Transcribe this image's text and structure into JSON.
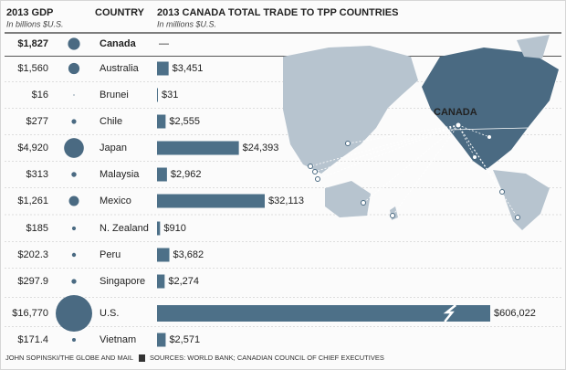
{
  "chart_data": {
    "type": "bar",
    "categories_label": "COUNTRY",
    "categories": [
      "Canada",
      "Australia",
      "Brunei",
      "Chile",
      "Japan",
      "Malaysia",
      "Mexico",
      "N. Zealand",
      "Peru",
      "Singapore",
      "U.S.",
      "Vietnam"
    ],
    "gdp": {
      "title": "2013 GDP",
      "subtitle": "In billions $U.S.",
      "color": "#4a6a82",
      "values": [
        1827,
        1560,
        16,
        277,
        4920,
        313,
        1261,
        185,
        202.3,
        297.9,
        16770,
        171.4
      ],
      "value_labels": [
        "$1,827",
        "$1,560",
        "$16",
        "$277",
        "$4,920",
        "$313",
        "$1,261",
        "$185",
        "$202.3",
        "$297.9",
        "$16,770",
        "$171.4"
      ]
    },
    "trade": {
      "title": "2013 CANADA TOTAL TRADE TO TPP COUNTRIES",
      "subtitle": "In millions $U.S.",
      "color": "#4d7088",
      "values": [
        null,
        3451,
        31,
        2555,
        24393,
        2962,
        32113,
        910,
        3682,
        2274,
        606022,
        2571
      ],
      "value_labels": [
        "—",
        "$3,451",
        "$31",
        "$2,555",
        "$24,393",
        "$2,962",
        "$32,113",
        "$910",
        "$3,682",
        "$2,274",
        "$606,022",
        "$2,571"
      ]
    },
    "map_label": "CANADA",
    "credit": "JOHN SOPINSKI/THE GLOBE AND MAIL",
    "source": "SOURCES: WORLD BANK; CANADIAN COUNCIL OF CHIEF EXECUTIVES"
  }
}
